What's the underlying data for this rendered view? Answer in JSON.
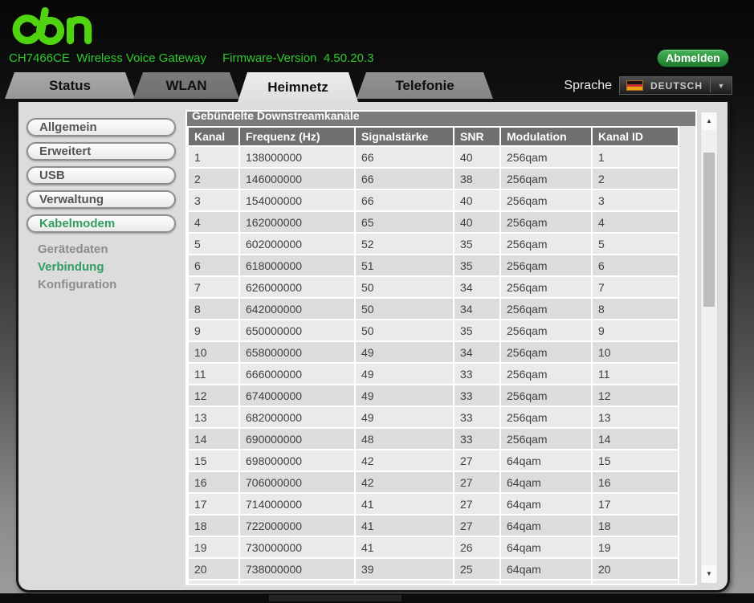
{
  "header": {
    "logo": "cbn",
    "model": "CH7466CE",
    "product": "Wireless Voice Gateway",
    "firmware_label": "Firmware-Version",
    "firmware_version": "4.50.20.3",
    "logout_label": "Abmelden"
  },
  "tabbar": {
    "tabs": [
      {
        "label": "Status",
        "active": false
      },
      {
        "label": "WLAN",
        "active": false
      },
      {
        "label": "Heimnetz",
        "active": true
      },
      {
        "label": "Telefonie",
        "active": false
      }
    ],
    "language": {
      "label": "Sprache",
      "value": "DEUTSCH",
      "flag_icon": "german-flag-icon"
    }
  },
  "sidebar": {
    "buttons": [
      {
        "label": "Allgemein",
        "active": false
      },
      {
        "label": "Erweitert",
        "active": false
      },
      {
        "label": "USB",
        "active": false
      },
      {
        "label": "Verwaltung",
        "active": false
      },
      {
        "label": "Kabelmodem",
        "active": true
      }
    ],
    "subitems": [
      {
        "label": "Gerätedaten",
        "active": false
      },
      {
        "label": "Verbindung",
        "active": true
      },
      {
        "label": "Konfiguration",
        "active": false
      }
    ]
  },
  "table": {
    "title": "Gebündelte Downstreamkanäle",
    "columns": [
      "Kanal",
      "Frequenz (Hz)",
      "Signalstärke",
      "SNR",
      "Modulation",
      "Kanal ID"
    ],
    "rows": [
      [
        "1",
        "138000000",
        "66",
        "40",
        "256qam",
        "1"
      ],
      [
        "2",
        "146000000",
        "66",
        "38",
        "256qam",
        "2"
      ],
      [
        "3",
        "154000000",
        "66",
        "40",
        "256qam",
        "3"
      ],
      [
        "4",
        "162000000",
        "65",
        "40",
        "256qam",
        "4"
      ],
      [
        "5",
        "602000000",
        "52",
        "35",
        "256qam",
        "5"
      ],
      [
        "6",
        "618000000",
        "51",
        "35",
        "256qam",
        "6"
      ],
      [
        "7",
        "626000000",
        "50",
        "34",
        "256qam",
        "7"
      ],
      [
        "8",
        "642000000",
        "50",
        "34",
        "256qam",
        "8"
      ],
      [
        "9",
        "650000000",
        "50",
        "35",
        "256qam",
        "9"
      ],
      [
        "10",
        "658000000",
        "49",
        "34",
        "256qam",
        "10"
      ],
      [
        "11",
        "666000000",
        "49",
        "33",
        "256qam",
        "11"
      ],
      [
        "12",
        "674000000",
        "49",
        "33",
        "256qam",
        "12"
      ],
      [
        "13",
        "682000000",
        "49",
        "33",
        "256qam",
        "13"
      ],
      [
        "14",
        "690000000",
        "48",
        "33",
        "256qam",
        "14"
      ],
      [
        "15",
        "698000000",
        "42",
        "27",
        "64qam",
        "15"
      ],
      [
        "16",
        "706000000",
        "42",
        "27",
        "64qam",
        "16"
      ],
      [
        "17",
        "714000000",
        "41",
        "27",
        "64qam",
        "17"
      ],
      [
        "18",
        "722000000",
        "41",
        "27",
        "64qam",
        "18"
      ],
      [
        "19",
        "730000000",
        "41",
        "26",
        "64qam",
        "19"
      ],
      [
        "20",
        "738000000",
        "39",
        "25",
        "64qam",
        "20"
      ]
    ]
  },
  "colors": {
    "logo_green": "#50d412",
    "header_text_green": "#2eca2e",
    "nav_active_green": "#2f9e60",
    "logout_green": "#2e9440",
    "table_header_gray": "#6f6f6f",
    "panel_gray": "#dcdcdc"
  }
}
